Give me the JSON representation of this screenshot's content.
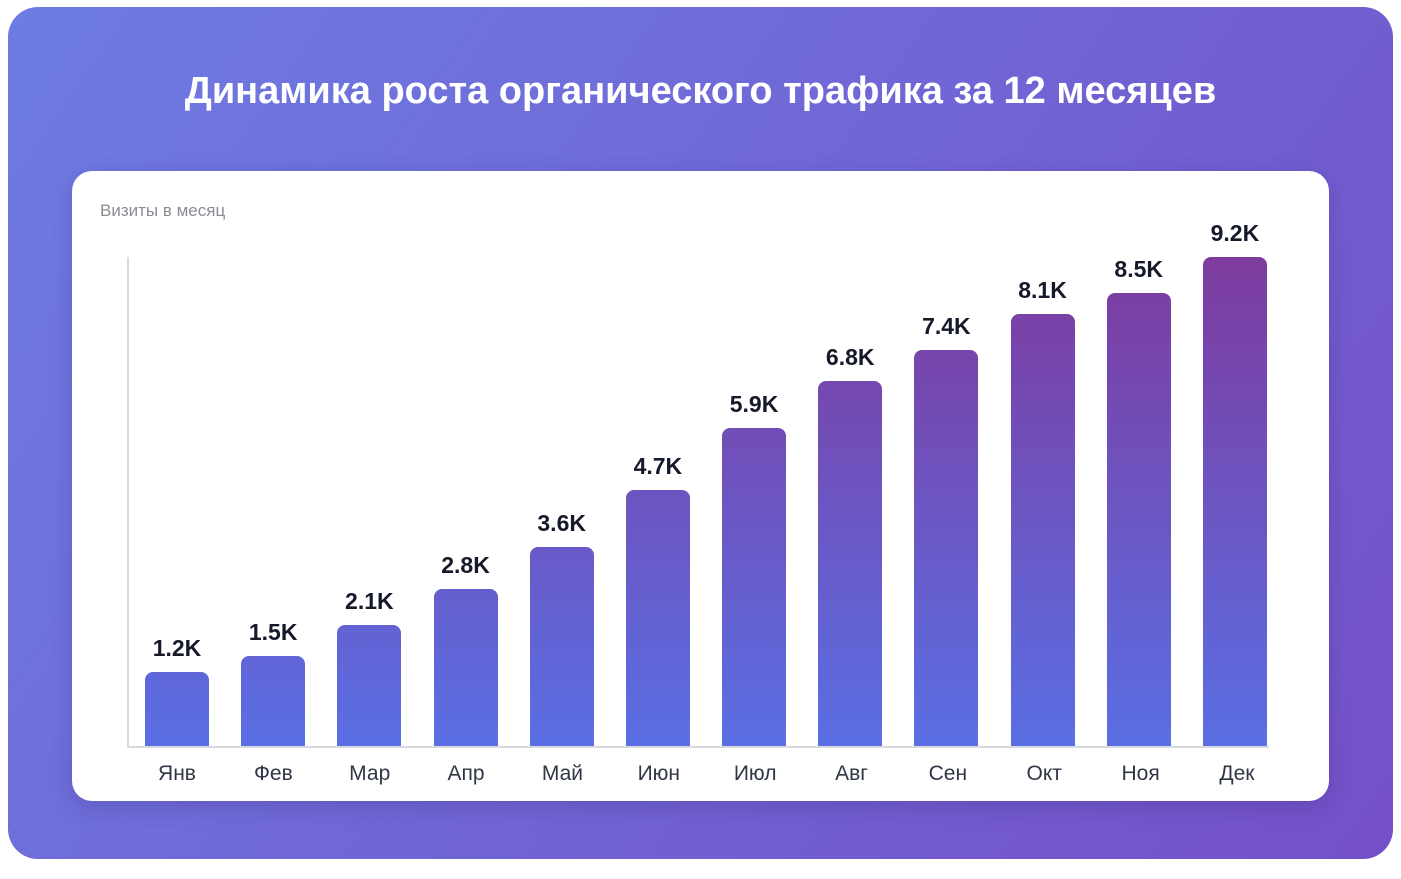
{
  "page": {
    "title": "Динамика роста органического трафика за 12 месяцев"
  },
  "chart_data": {
    "type": "bar",
    "title": "Динамика роста органического трафика за 12 месяцев",
    "ylabel": "Визиты в месяц",
    "xlabel": "",
    "categories": [
      "Янв",
      "Фев",
      "Мар",
      "Апр",
      "Май",
      "Июн",
      "Июл",
      "Авг",
      "Сен",
      "Окт",
      "Ноя",
      "Дек"
    ],
    "values": [
      1200,
      1500,
      2100,
      2800,
      3600,
      4700,
      5900,
      6800,
      7400,
      8100,
      8500,
      9200
    ],
    "value_labels": [
      "1.2K",
      "1.5K",
      "2.1K",
      "2.8K",
      "3.6K",
      "4.7K",
      "5.9K",
      "6.8K",
      "7.4K",
      "8.1K",
      "8.5K",
      "9.2K"
    ],
    "ylim": [
      0,
      9200
    ],
    "grid": false,
    "legend": "none",
    "colors": {
      "background_gradient_start": "#6d7ce2",
      "background_gradient_end": "#7450c8",
      "bar_gradient_top": "#7e3b9e",
      "bar_gradient_bottom": "#5a6fe4",
      "axis": "#d8d8e0",
      "value_label": "#15192a",
      "month_label": "#2f3744",
      "ylabel_color": "#8b8b93",
      "title_color": "#ffffff"
    }
  }
}
